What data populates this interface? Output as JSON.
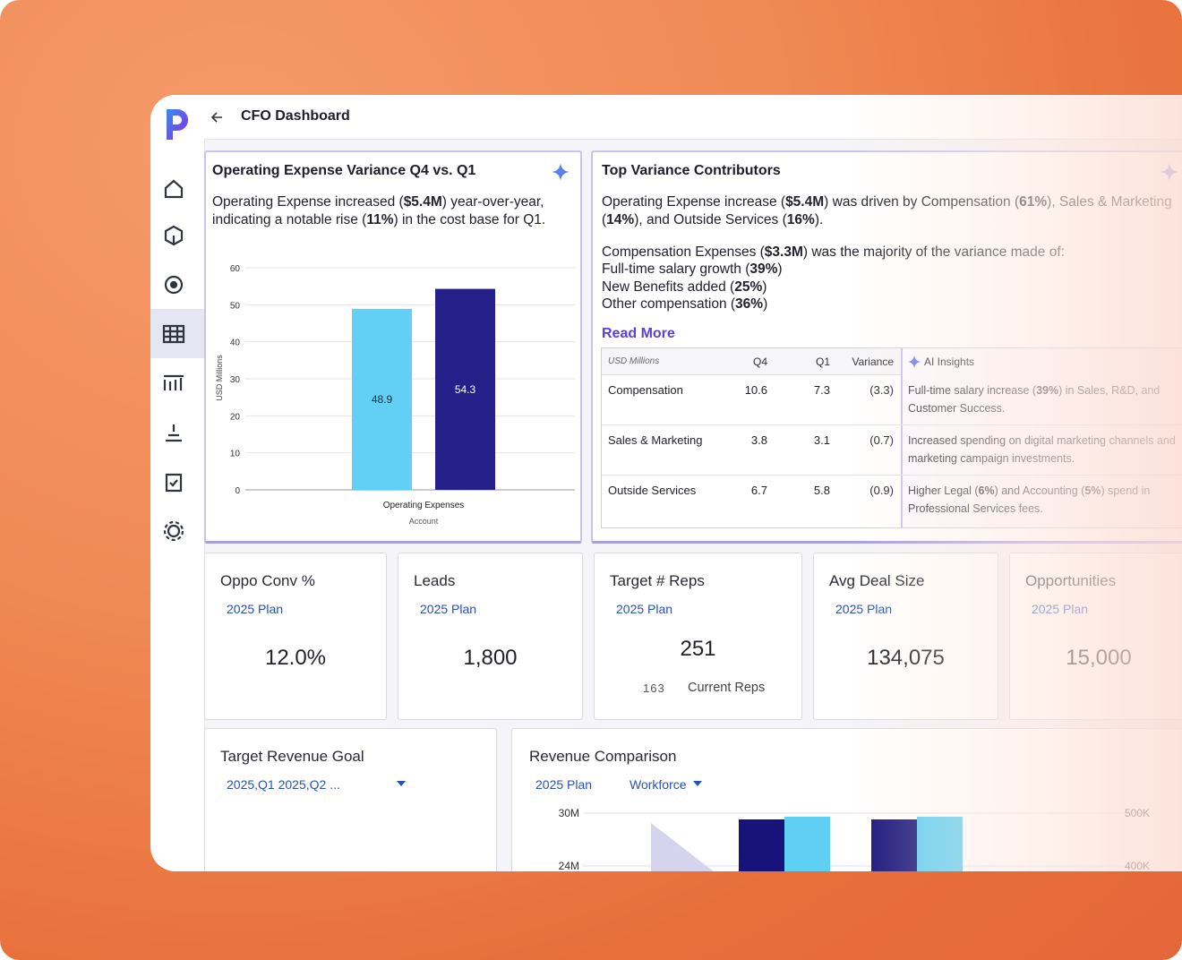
{
  "header": {
    "title": "CFO Dashboard"
  },
  "variance_card": {
    "title": "Operating Expense Variance Q4 vs. Q1",
    "summary": [
      "Operating Expense increased (",
      "$5.4M",
      ") year-over-year, indicating a notable rise (",
      "11%",
      ") in the cost base for Q1."
    ]
  },
  "chart_data": {
    "type": "bar",
    "categories": [
      "Operating Expenses"
    ],
    "series": [
      {
        "color": "#62d0f4",
        "values": [
          48.9
        ]
      },
      {
        "color": "#23208a",
        "values": [
          54.3
        ]
      }
    ],
    "x_label": "Account",
    "y_label": "USD Millions",
    "ylim": [
      0,
      60
    ],
    "yticks": [
      0,
      10,
      20,
      30,
      40,
      50,
      60
    ],
    "grid": true
  },
  "contributors_card": {
    "title": "Top Variance Contributors",
    "paragraph": [
      "Operating Expense increase (",
      "$5.4M",
      ") was driven by Compensation (",
      "61%",
      "), Sales & Marketing (",
      "14%",
      "), and Outside Services (",
      "16%",
      ")."
    ],
    "intro": [
      "Compensation Expenses (",
      "$3.3M",
      ") was the majority of the variance made of:"
    ],
    "items": [
      [
        "Full-time salary growth (",
        "39%",
        ")"
      ],
      [
        "New Benefits added (",
        "25%",
        ")"
      ],
      [
        "Other compensation (",
        "36%",
        ")"
      ]
    ],
    "link": "Read More"
  },
  "table": {
    "header": [
      "USD Millions",
      "Q4",
      "Q1",
      "Variance"
    ],
    "insights_header": "AI Insights",
    "rows": [
      [
        "Compensation",
        "10.6",
        "7.3",
        "(3.3)"
      ],
      [
        "Sales & Marketing",
        "3.8",
        "3.1",
        "(0.7)"
      ],
      [
        "Outside Services",
        "6.7",
        "5.8",
        "(0.9)"
      ]
    ],
    "insights": [
      [
        "Full-time salary increase (",
        "39%",
        ") in Sales, R&D, and Customer Success."
      ],
      [
        "Increased spending on digital marketing channels and marketing campaign investments."
      ],
      [
        "Higher Legal (",
        "6%",
        ") and Accounting (",
        "5%",
        ") spend in Professional Services fees."
      ]
    ]
  },
  "kpis": [
    {
      "title": "Oppo Conv %",
      "plan": "2025 Plan",
      "value": "12.0%"
    },
    {
      "title": "Leads",
      "plan": "2025 Plan",
      "value": "1,800"
    },
    {
      "title": "Target # Reps",
      "plan": "2025 Plan",
      "value": "251",
      "secondary_value": "163",
      "secondary_label": "Current Reps"
    },
    {
      "title": "Avg Deal Size",
      "plan": "2025 Plan",
      "value": "134,075"
    },
    {
      "title": "Opportunities",
      "plan": "2025 Plan",
      "value": "15,000"
    }
  ],
  "revenue_goal": {
    "title": "Target Revenue Goal",
    "filter": "2025,Q1 2025,Q2 ..."
  },
  "revenue_comparison": {
    "title": "Revenue Comparison",
    "filters": [
      "2025 Plan",
      "Workforce"
    ],
    "y_ticks": [
      "30M",
      "24M"
    ],
    "y2_ticks": [
      "500K",
      "400K"
    ]
  }
}
